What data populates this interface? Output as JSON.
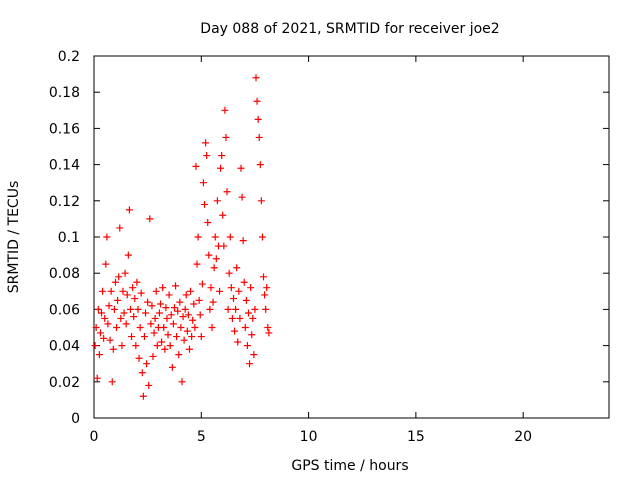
{
  "chart_data": {
    "type": "scatter",
    "title": "Day 088 of 2021, SRMTID for receiver joe2",
    "xlabel": "GPS time / hours",
    "ylabel": "SRMTID / TECUs",
    "xlim": [
      0,
      24
    ],
    "ylim": [
      0,
      0.2
    ],
    "x_ticks": [
      0,
      5,
      10,
      15,
      20
    ],
    "y_ticks": [
      0,
      0.02,
      0.04,
      0.06,
      0.08,
      0.1,
      0.12,
      0.14,
      0.16,
      0.18,
      0.2
    ],
    "x_tick_labels": [
      "0",
      "5",
      "10",
      "15",
      "20"
    ],
    "y_tick_labels": [
      "0",
      "0.02",
      "0.04",
      "0.06",
      "0.08",
      "0.1",
      "0.12",
      "0.14",
      "0.16",
      "0.18",
      "0.2"
    ],
    "grid": true,
    "marker": "+",
    "marker_color": "#ff0000",
    "x_range_of_data": [
      0,
      8.2
    ],
    "points": [
      [
        0.05,
        0.04
      ],
      [
        0.1,
        0.05
      ],
      [
        0.15,
        0.022
      ],
      [
        0.2,
        0.06
      ],
      [
        0.25,
        0.035
      ],
      [
        0.3,
        0.047
      ],
      [
        0.35,
        0.058
      ],
      [
        0.4,
        0.07
      ],
      [
        0.45,
        0.044
      ],
      [
        0.5,
        0.055
      ],
      [
        0.55,
        0.085
      ],
      [
        0.6,
        0.1
      ],
      [
        0.65,
        0.052
      ],
      [
        0.7,
        0.062
      ],
      [
        0.75,
        0.043
      ],
      [
        0.8,
        0.07
      ],
      [
        0.85,
        0.02
      ],
      [
        0.9,
        0.038
      ],
      [
        0.95,
        0.06
      ],
      [
        1.0,
        0.075
      ],
      [
        1.05,
        0.05
      ],
      [
        1.1,
        0.065
      ],
      [
        1.15,
        0.078
      ],
      [
        1.2,
        0.105
      ],
      [
        1.25,
        0.055
      ],
      [
        1.3,
        0.04
      ],
      [
        1.35,
        0.07
      ],
      [
        1.4,
        0.058
      ],
      [
        1.45,
        0.08
      ],
      [
        1.5,
        0.052
      ],
      [
        1.55,
        0.068
      ],
      [
        1.6,
        0.09
      ],
      [
        1.65,
        0.115
      ],
      [
        1.7,
        0.06
      ],
      [
        1.75,
        0.045
      ],
      [
        1.8,
        0.072
      ],
      [
        1.85,
        0.056
      ],
      [
        1.9,
        0.066
      ],
      [
        1.95,
        0.04
      ],
      [
        2.0,
        0.075
      ],
      [
        2.05,
        0.06
      ],
      [
        2.1,
        0.033
      ],
      [
        2.15,
        0.05
      ],
      [
        2.2,
        0.069
      ],
      [
        2.25,
        0.025
      ],
      [
        2.3,
        0.012
      ],
      [
        2.35,
        0.045
      ],
      [
        2.4,
        0.058
      ],
      [
        2.45,
        0.03
      ],
      [
        2.5,
        0.064
      ],
      [
        2.55,
        0.018
      ],
      [
        2.6,
        0.11
      ],
      [
        2.65,
        0.052
      ],
      [
        2.7,
        0.062
      ],
      [
        2.75,
        0.034
      ],
      [
        2.8,
        0.047
      ],
      [
        2.85,
        0.055
      ],
      [
        2.9,
        0.07
      ],
      [
        2.95,
        0.04
      ],
      [
        3.0,
        0.05
      ],
      [
        3.05,
        0.058
      ],
      [
        3.1,
        0.063
      ],
      [
        3.15,
        0.042
      ],
      [
        3.2,
        0.072
      ],
      [
        3.25,
        0.05
      ],
      [
        3.3,
        0.038
      ],
      [
        3.35,
        0.061
      ],
      [
        3.4,
        0.055
      ],
      [
        3.45,
        0.046
      ],
      [
        3.5,
        0.068
      ],
      [
        3.55,
        0.04
      ],
      [
        3.6,
        0.057
      ],
      [
        3.65,
        0.028
      ],
      [
        3.7,
        0.052
      ],
      [
        3.75,
        0.061
      ],
      [
        3.8,
        0.073
      ],
      [
        3.85,
        0.045
      ],
      [
        3.9,
        0.059
      ],
      [
        3.95,
        0.035
      ],
      [
        4.0,
        0.064
      ],
      [
        4.05,
        0.05
      ],
      [
        4.1,
        0.02
      ],
      [
        4.15,
        0.056
      ],
      [
        4.2,
        0.043
      ],
      [
        4.25,
        0.06
      ],
      [
        4.3,
        0.068
      ],
      [
        4.35,
        0.048
      ],
      [
        4.4,
        0.057
      ],
      [
        4.45,
        0.038
      ],
      [
        4.5,
        0.07
      ],
      [
        4.55,
        0.045
      ],
      [
        4.6,
        0.054
      ],
      [
        4.65,
        0.063
      ],
      [
        4.7,
        0.05
      ],
      [
        4.75,
        0.139
      ],
      [
        4.8,
        0.085
      ],
      [
        4.85,
        0.1
      ],
      [
        4.9,
        0.065
      ],
      [
        4.95,
        0.057
      ],
      [
        5.0,
        0.045
      ],
      [
        5.05,
        0.074
      ],
      [
        5.1,
        0.13
      ],
      [
        5.15,
        0.118
      ],
      [
        5.2,
        0.152
      ],
      [
        5.25,
        0.145
      ],
      [
        5.3,
        0.108
      ],
      [
        5.35,
        0.09
      ],
      [
        5.4,
        0.06
      ],
      [
        5.45,
        0.072
      ],
      [
        5.5,
        0.05
      ],
      [
        5.55,
        0.064
      ],
      [
        5.6,
        0.083
      ],
      [
        5.65,
        0.1
      ],
      [
        5.7,
        0.088
      ],
      [
        5.75,
        0.12
      ],
      [
        5.8,
        0.095
      ],
      [
        5.85,
        0.07
      ],
      [
        5.9,
        0.138
      ],
      [
        5.95,
        0.145
      ],
      [
        6.0,
        0.112
      ],
      [
        6.05,
        0.095
      ],
      [
        6.1,
        0.17
      ],
      [
        6.15,
        0.155
      ],
      [
        6.2,
        0.125
      ],
      [
        6.25,
        0.06
      ],
      [
        6.3,
        0.08
      ],
      [
        6.35,
        0.1
      ],
      [
        6.4,
        0.072
      ],
      [
        6.45,
        0.055
      ],
      [
        6.5,
        0.066
      ],
      [
        6.55,
        0.048
      ],
      [
        6.6,
        0.06
      ],
      [
        6.65,
        0.083
      ],
      [
        6.7,
        0.042
      ],
      [
        6.75,
        0.07
      ],
      [
        6.8,
        0.055
      ],
      [
        6.85,
        0.138
      ],
      [
        6.9,
        0.122
      ],
      [
        6.95,
        0.098
      ],
      [
        7.0,
        0.075
      ],
      [
        7.05,
        0.05
      ],
      [
        7.1,
        0.065
      ],
      [
        7.15,
        0.04
      ],
      [
        7.2,
        0.058
      ],
      [
        7.25,
        0.03
      ],
      [
        7.3,
        0.072
      ],
      [
        7.35,
        0.046
      ],
      [
        7.4,
        0.055
      ],
      [
        7.45,
        0.035
      ],
      [
        7.5,
        0.06
      ],
      [
        7.55,
        0.188
      ],
      [
        7.6,
        0.175
      ],
      [
        7.65,
        0.165
      ],
      [
        7.7,
        0.155
      ],
      [
        7.75,
        0.14
      ],
      [
        7.8,
        0.12
      ],
      [
        7.85,
        0.1
      ],
      [
        7.9,
        0.078
      ],
      [
        7.95,
        0.068
      ],
      [
        8.0,
        0.06
      ],
      [
        8.05,
        0.072
      ],
      [
        8.1,
        0.05
      ],
      [
        8.15,
        0.047
      ]
    ]
  }
}
